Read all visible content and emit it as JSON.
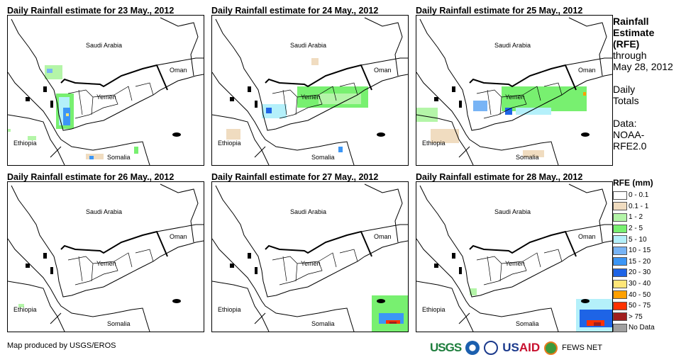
{
  "panels": [
    {
      "title": "Daily Rainfall estimate for 23 May., 2012"
    },
    {
      "title": "Daily Rainfall estimate for 24 May., 2012"
    },
    {
      "title": "Daily Rainfall estimate for 25 May., 2012"
    },
    {
      "title": "Daily Rainfall estimate for 26 May., 2012"
    },
    {
      "title": "Daily Rainfall estimate for 27 May., 2012"
    },
    {
      "title": "Daily Rainfall estimate for 28 May., 2012"
    }
  ],
  "map_labels": {
    "saudi": "Saudi Arabia",
    "oman": "Oman",
    "yemen": "Yemen",
    "ethiopia": "Ethiopia",
    "somalia": "Somalia"
  },
  "side": {
    "title1": "Rainfall",
    "title2": "Estimate",
    "title3": "(RFE)",
    "through": "through",
    "date": "May 28, 2012",
    "daily": "Daily",
    "totals": "Totals",
    "data": "Data:",
    "src1": "NOAA-",
    "src2": "RFE2.0"
  },
  "legend": {
    "title": "RFE (mm)",
    "items": [
      {
        "label": "0 - 0.1",
        "color": "#ffffff"
      },
      {
        "label": "0.1 - 1",
        "color": "#f0dcc0"
      },
      {
        "label": "1 - 2",
        "color": "#b4f5a8"
      },
      {
        "label": "2 - 5",
        "color": "#78f070"
      },
      {
        "label": "5 - 10",
        "color": "#b4f0fa"
      },
      {
        "label": "10 - 15",
        "color": "#78b4f5"
      },
      {
        "label": "15 - 20",
        "color": "#3c96f5"
      },
      {
        "label": "20 - 30",
        "color": "#1e64e6"
      },
      {
        "label": "30 - 40",
        "color": "#ffe678"
      },
      {
        "label": "40 - 50",
        "color": "#ffa000"
      },
      {
        "label": "50 - 75",
        "color": "#ff3200"
      },
      {
        "label": "> 75",
        "color": "#a01e1e"
      },
      {
        "label": "No Data",
        "color": "#a0a0a0"
      }
    ]
  },
  "footer": {
    "credit": "Map produced by USGS/EROS",
    "usgs": "USGS",
    "usaid_us": "US",
    "usaid_aid": "AID",
    "fews": "FEWS NET"
  }
}
